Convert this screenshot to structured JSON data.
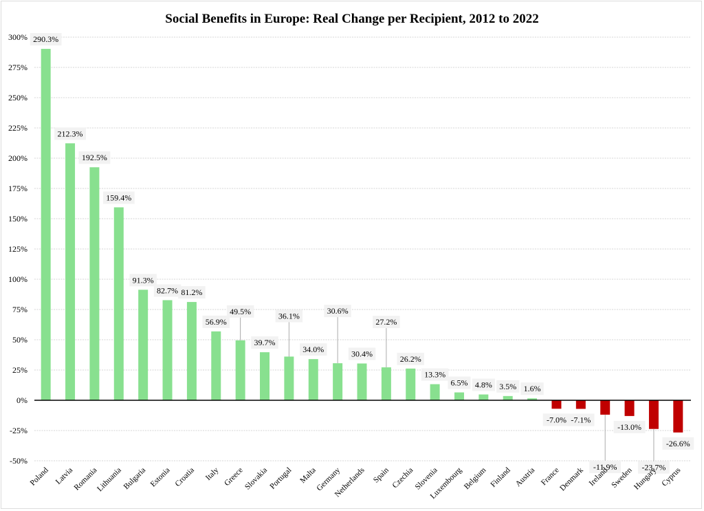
{
  "chart_data": {
    "type": "bar",
    "title": "Social Benefits in Europe: Real Change per Recipient, 2012 to 2022",
    "xlabel": "",
    "ylabel": "",
    "ylim": [
      -50,
      300
    ],
    "yticks": [
      300,
      275,
      250,
      225,
      200,
      175,
      150,
      125,
      100,
      75,
      50,
      25,
      0,
      -25,
      -50
    ],
    "ytick_labels": [
      "300%",
      "275%",
      "250%",
      "225%",
      "200%",
      "175%",
      "150%",
      "125%",
      "100%",
      "75%",
      "50%",
      "25%",
      "0%",
      "-25%",
      "-50%"
    ],
    "grid": true,
    "legend": "none",
    "positive_color": "#88e08f",
    "negative_color": "#c00000",
    "categories": [
      "Poland",
      "Latvia",
      "Romania",
      "Lithuania",
      "Bulgaria",
      "Estonia",
      "Croatia",
      "Italy",
      "Greece",
      "Slovakia",
      "Portugal",
      "Malta",
      "Germany",
      "Netherlands",
      "Spain",
      "Czechia",
      "Slovenia",
      "Luxembourg",
      "Belgium",
      "Finland",
      "Austria",
      "France",
      "Denmark",
      "Ireland",
      "Sweden",
      "Hungary",
      "Cyprus"
    ],
    "values": [
      290.3,
      212.3,
      192.5,
      159.4,
      91.3,
      82.7,
      81.2,
      56.9,
      49.5,
      39.7,
      36.1,
      34.0,
      30.6,
      30.4,
      27.2,
      26.2,
      13.3,
      6.5,
      4.8,
      3.5,
      1.6,
      -7.0,
      -7.1,
      -11.9,
      -13.0,
      -23.7,
      -26.6
    ],
    "data_labels": [
      "290.3%",
      "212.3%",
      "192.5%",
      "159.4%",
      "91.3%",
      "82.7%",
      "81.2%",
      "56.9%",
      "49.5%",
      "39.7%",
      "36.1%",
      "34.0%",
      "30.6%",
      "30.4%",
      "27.2%",
      "26.2%",
      "13.3%",
      "6.5%",
      "4.8%",
      "3.5%",
      "1.6%",
      "-7.0%",
      "-7.1%",
      "-11.9%",
      "-13.0%",
      "-23.7%",
      "-26.6%"
    ]
  }
}
